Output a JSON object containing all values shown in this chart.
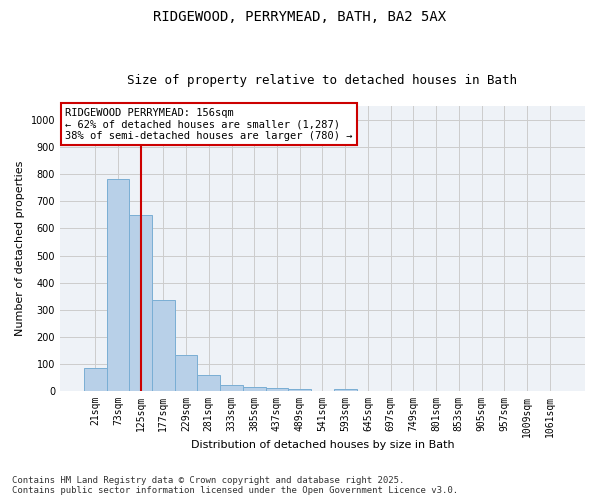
{
  "title1": "RIDGEWOOD, PERRYMEAD, BATH, BA2 5AX",
  "title2": "Size of property relative to detached houses in Bath",
  "xlabel": "Distribution of detached houses by size in Bath",
  "ylabel": "Number of detached properties",
  "categories": [
    "21sqm",
    "73sqm",
    "125sqm",
    "177sqm",
    "229sqm",
    "281sqm",
    "333sqm",
    "385sqm",
    "437sqm",
    "489sqm",
    "541sqm",
    "593sqm",
    "645sqm",
    "697sqm",
    "749sqm",
    "801sqm",
    "853sqm",
    "905sqm",
    "957sqm",
    "1009sqm",
    "1061sqm"
  ],
  "values": [
    85,
    783,
    648,
    335,
    133,
    60,
    22,
    15,
    12,
    7,
    0,
    10,
    0,
    0,
    0,
    0,
    0,
    0,
    0,
    0,
    0
  ],
  "bar_color": "#b8d0e8",
  "bar_edge_color": "#7aaed4",
  "vline_color": "#cc0000",
  "annotation_box_text": "RIDGEWOOD PERRYMEAD: 156sqm\n← 62% of detached houses are smaller (1,287)\n38% of semi-detached houses are larger (780) →",
  "annotation_box_color": "#cc0000",
  "ylim": [
    0,
    1050
  ],
  "yticks": [
    0,
    100,
    200,
    300,
    400,
    500,
    600,
    700,
    800,
    900,
    1000
  ],
  "grid_color": "#cccccc",
  "background_color": "#eef2f7",
  "footer_text": "Contains HM Land Registry data © Crown copyright and database right 2025.\nContains public sector information licensed under the Open Government Licence v3.0.",
  "title_fontsize": 10,
  "subtitle_fontsize": 9,
  "axis_label_fontsize": 8,
  "tick_fontsize": 7,
  "annotation_fontsize": 7.5,
  "footer_fontsize": 6.5
}
